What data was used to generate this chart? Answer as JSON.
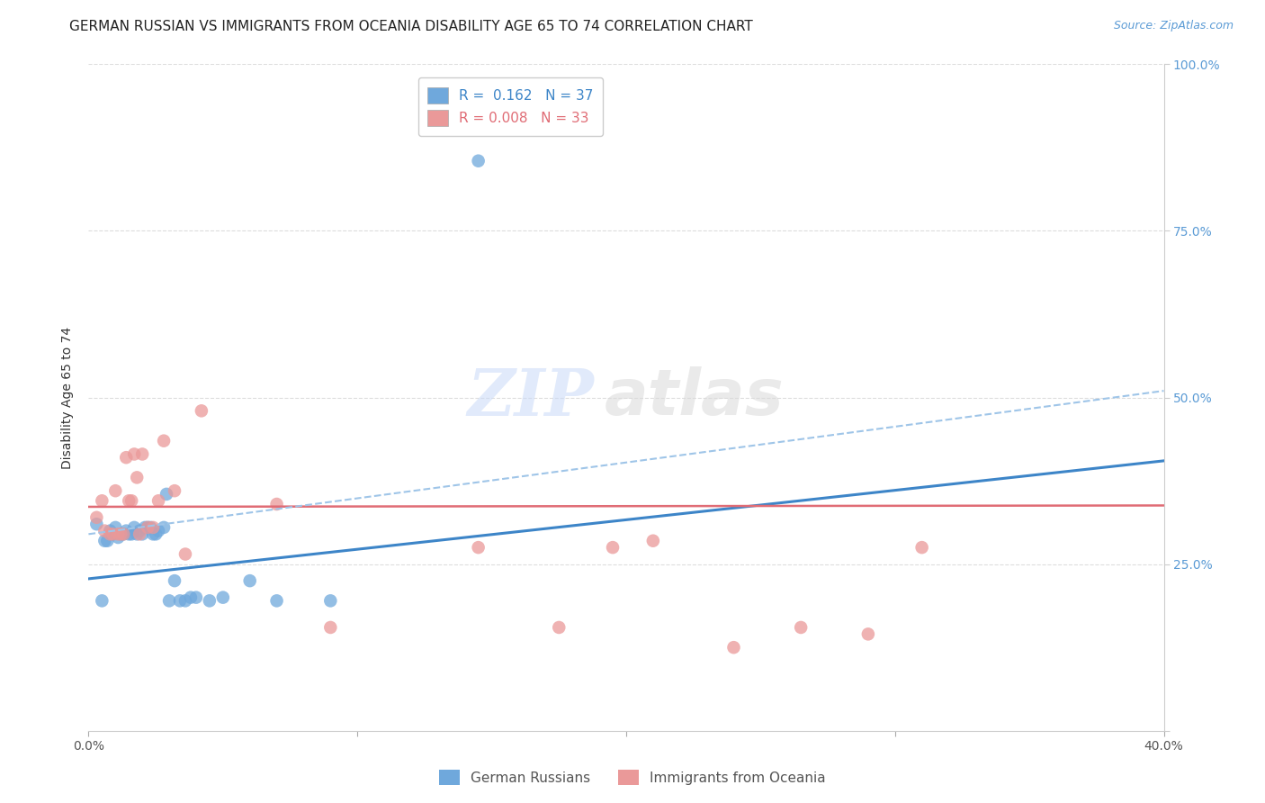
{
  "title": "GERMAN RUSSIAN VS IMMIGRANTS FROM OCEANIA DISABILITY AGE 65 TO 74 CORRELATION CHART",
  "source": "Source: ZipAtlas.com",
  "ylabel": "Disability Age 65 to 74",
  "xlim": [
    0.0,
    0.4
  ],
  "ylim": [
    0.0,
    1.0
  ],
  "xticks": [
    0.0,
    0.1,
    0.2,
    0.3,
    0.4
  ],
  "xticklabels": [
    "0.0%",
    "",
    "",
    "",
    "40.0%"
  ],
  "yticks": [
    0.0,
    0.25,
    0.5,
    0.75,
    1.0
  ],
  "yticklabels": [
    "",
    "25.0%",
    "50.0%",
    "75.0%",
    "100.0%"
  ],
  "blue_color": "#6fa8dc",
  "pink_color": "#ea9999",
  "blue_line_color": "#3d85c8",
  "pink_line_color": "#e06c75",
  "dashed_line_color": "#9fc5e8",
  "r_blue": 0.162,
  "n_blue": 37,
  "r_pink": 0.008,
  "n_pink": 33,
  "watermark_zip": "ZIP",
  "watermark_atlas": "atlas",
  "blue_scatter_x": [
    0.003,
    0.005,
    0.006,
    0.007,
    0.008,
    0.009,
    0.01,
    0.011,
    0.012,
    0.013,
    0.014,
    0.015,
    0.016,
    0.017,
    0.018,
    0.019,
    0.02,
    0.021,
    0.022,
    0.023,
    0.024,
    0.025,
    0.026,
    0.028,
    0.029,
    0.03,
    0.032,
    0.034,
    0.036,
    0.038,
    0.04,
    0.045,
    0.05,
    0.06,
    0.07,
    0.09,
    0.145
  ],
  "blue_scatter_y": [
    0.31,
    0.195,
    0.285,
    0.285,
    0.3,
    0.295,
    0.305,
    0.29,
    0.295,
    0.295,
    0.3,
    0.295,
    0.295,
    0.305,
    0.295,
    0.3,
    0.295,
    0.305,
    0.305,
    0.305,
    0.295,
    0.295,
    0.3,
    0.305,
    0.355,
    0.195,
    0.225,
    0.195,
    0.195,
    0.2,
    0.2,
    0.195,
    0.2,
    0.225,
    0.195,
    0.195,
    0.855
  ],
  "pink_scatter_x": [
    0.003,
    0.005,
    0.006,
    0.008,
    0.009,
    0.01,
    0.011,
    0.012,
    0.013,
    0.014,
    0.015,
    0.016,
    0.017,
    0.018,
    0.019,
    0.02,
    0.022,
    0.024,
    0.026,
    0.028,
    0.032,
    0.036,
    0.042,
    0.07,
    0.09,
    0.145,
    0.175,
    0.195,
    0.21,
    0.24,
    0.265,
    0.29,
    0.31
  ],
  "pink_scatter_y": [
    0.32,
    0.345,
    0.3,
    0.295,
    0.295,
    0.36,
    0.295,
    0.295,
    0.295,
    0.41,
    0.345,
    0.345,
    0.415,
    0.38,
    0.295,
    0.415,
    0.305,
    0.305,
    0.345,
    0.435,
    0.36,
    0.265,
    0.48,
    0.34,
    0.155,
    0.275,
    0.155,
    0.275,
    0.285,
    0.125,
    0.155,
    0.145,
    0.275
  ],
  "blue_trend_x": [
    0.0,
    0.4
  ],
  "blue_trend_y": [
    0.228,
    0.405
  ],
  "pink_trend_x": [
    0.0,
    0.4
  ],
  "pink_trend_y": [
    0.336,
    0.338
  ],
  "dash_trend_x": [
    0.0,
    0.4
  ],
  "dash_trend_y": [
    0.295,
    0.51
  ],
  "title_fontsize": 11,
  "axis_label_fontsize": 10,
  "tick_fontsize": 10,
  "legend_fontsize": 11,
  "source_fontsize": 9
}
